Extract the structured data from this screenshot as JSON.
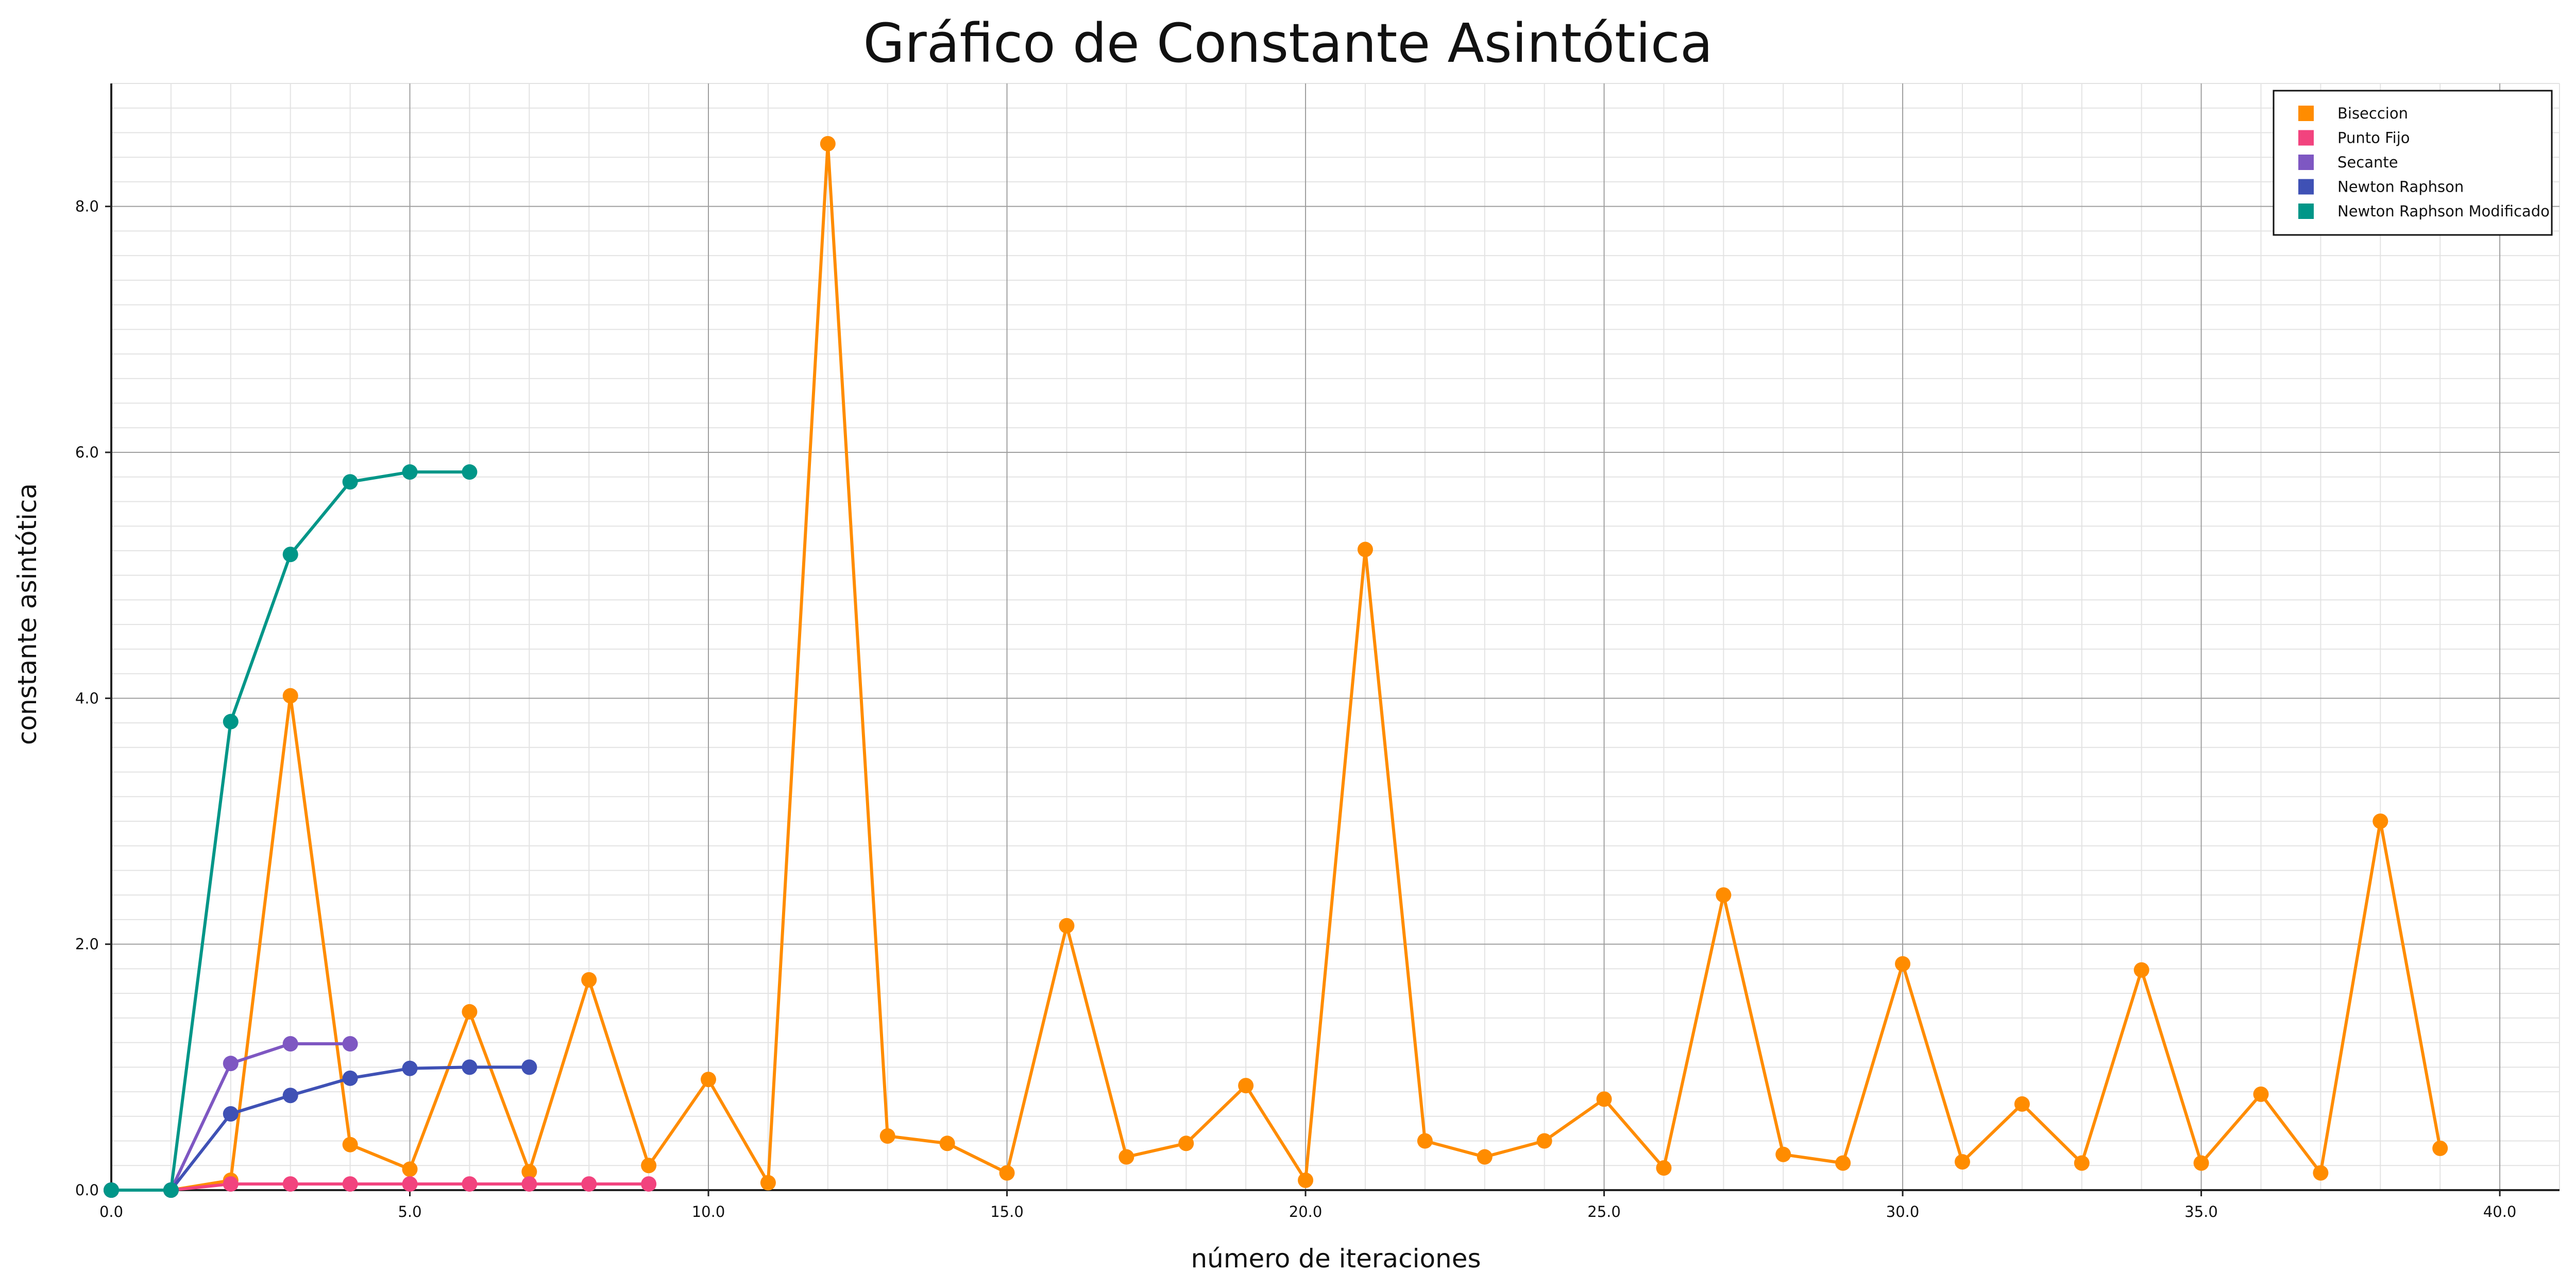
{
  "chart_data": {
    "type": "line",
    "title": "Gráfico de Constante Asintótica",
    "xlabel": "número de iteraciones",
    "ylabel": "constante asintótica",
    "xlim": [
      0,
      41
    ],
    "ylim": [
      0,
      9
    ],
    "x_ticks": [
      "0.0",
      "5.0",
      "10.0",
      "15.0",
      "20.0",
      "25.0",
      "30.0",
      "35.0",
      "40.0"
    ],
    "y_ticks": [
      "0.0",
      "2.0",
      "4.0",
      "6.0",
      "8.0"
    ],
    "grid": true,
    "legend_position": "top-right",
    "series": [
      {
        "name": "Biseccion",
        "color": "#ff8c00",
        "x": [
          0,
          1,
          2,
          3,
          4,
          5,
          6,
          7,
          8,
          9,
          10,
          11,
          12,
          13,
          14,
          15,
          16,
          17,
          18,
          19,
          20,
          21,
          22,
          23,
          24,
          25,
          26,
          27,
          28,
          29,
          30,
          31,
          32,
          33,
          34,
          35,
          36,
          37,
          38,
          39
        ],
        "y": [
          0,
          0,
          0.08,
          4.02,
          0.37,
          0.17,
          1.45,
          0.15,
          1.71,
          0.2,
          0.9,
          0.06,
          8.51,
          0.44,
          0.38,
          0.14,
          2.15,
          0.27,
          0.38,
          0.85,
          0.08,
          5.21,
          0.4,
          0.27,
          0.4,
          0.74,
          0.18,
          2.4,
          0.29,
          0.22,
          1.84,
          0.23,
          0.7,
          0.22,
          1.79,
          0.22,
          0.78,
          0.14,
          3.0,
          0.34
        ]
      },
      {
        "name": "Punto Fijo",
        "color": "#f2437e",
        "x": [
          0,
          1,
          2,
          3,
          4,
          5,
          6,
          7,
          8,
          9
        ],
        "y": [
          0,
          0,
          0.05,
          0.05,
          0.05,
          0.05,
          0.05,
          0.05,
          0.05,
          0.05
        ]
      },
      {
        "name": "Secante",
        "color": "#7e57c2",
        "x": [
          0,
          1,
          2,
          3,
          4
        ],
        "y": [
          0,
          0,
          1.03,
          1.19,
          1.19
        ]
      },
      {
        "name": "Newton Raphson",
        "color": "#3f51b5",
        "x": [
          0,
          1,
          2,
          3,
          4,
          5,
          6,
          7
        ],
        "y": [
          0,
          0,
          0.62,
          0.77,
          0.91,
          0.99,
          1.0,
          1.0
        ]
      },
      {
        "name": "Newton Raphson Modificado",
        "color": "#009688",
        "x": [
          0,
          1,
          2,
          3,
          4,
          5,
          6
        ],
        "y": [
          0,
          0,
          3.81,
          5.17,
          5.76,
          5.84,
          5.84
        ]
      }
    ]
  }
}
